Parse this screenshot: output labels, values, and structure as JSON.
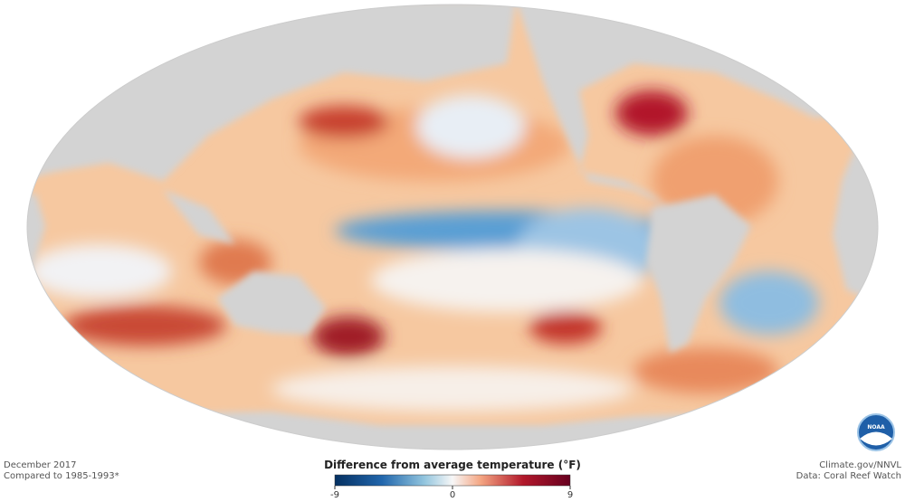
{
  "map": {
    "date": "December 2017",
    "baseline": "Compared to 1985-1993*",
    "credit": "Climate.gov/NNVL",
    "source": "Data: Coral Reef Watch",
    "logo": "NOAA"
  },
  "legend": {
    "title": "Difference from average temperature (°F)",
    "lim": [
      -9,
      9
    ],
    "ticks": [
      -9,
      0,
      9
    ]
  }
}
